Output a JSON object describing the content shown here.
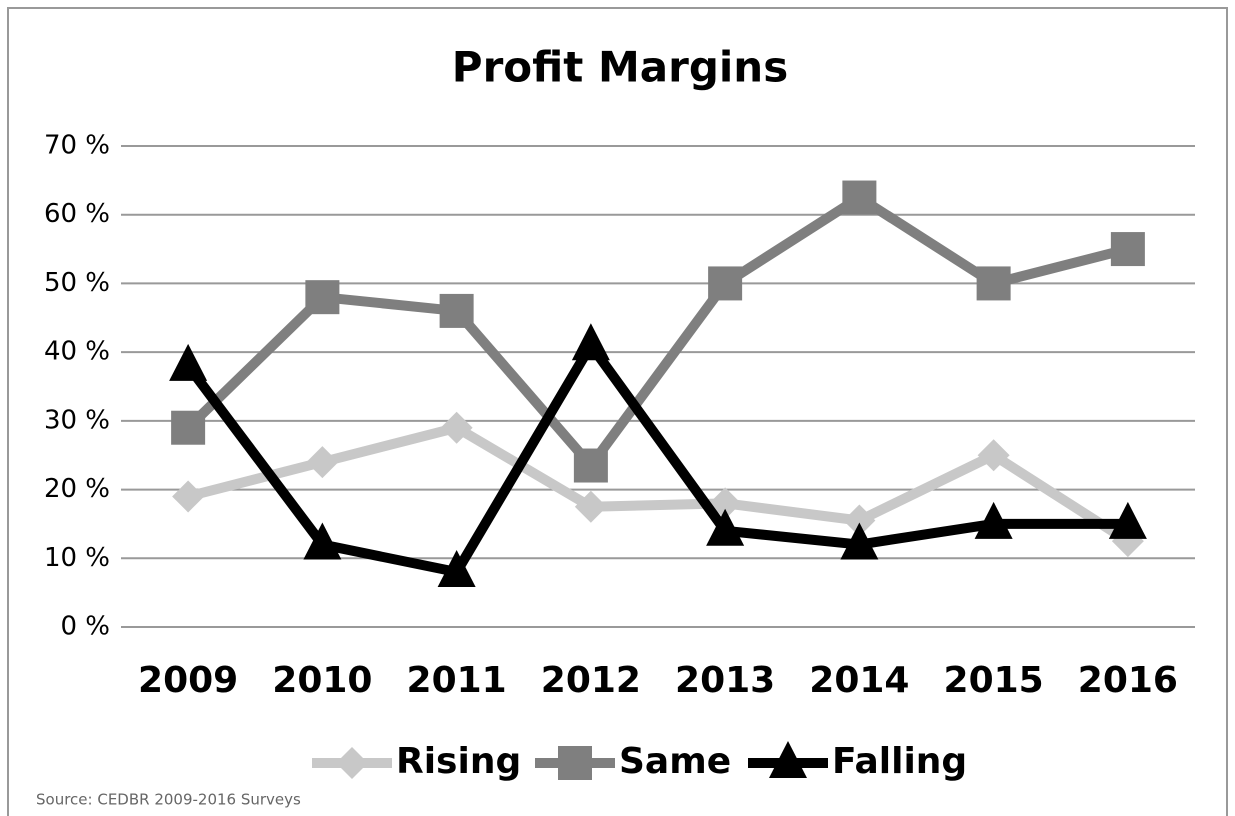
{
  "chart_data": {
    "type": "line",
    "title": "Profit Margins",
    "categories": [
      "2009",
      "2010",
      "2011",
      "2012",
      "2013",
      "2014",
      "2015",
      "2016"
    ],
    "series": [
      {
        "name": "Rising",
        "color": "#c8c8c8",
        "marker": "diamond",
        "values": [
          19,
          24,
          29,
          17.5,
          18,
          15.5,
          25,
          12.5
        ]
      },
      {
        "name": "Same",
        "color": "#7f7f7f",
        "marker": "square",
        "values": [
          29,
          48,
          46,
          23.5,
          50,
          62.5,
          50,
          55
        ]
      },
      {
        "name": "Falling",
        "color": "#000000",
        "marker": "triangle",
        "values": [
          38,
          12,
          8,
          41,
          14,
          12,
          15,
          15
        ]
      }
    ],
    "ylim": [
      0,
      70
    ],
    "yticks": [
      {
        "value": 0,
        "label": "0 %"
      },
      {
        "value": 10,
        "label": "10 %"
      },
      {
        "value": 20,
        "label": "20 %"
      },
      {
        "value": 30,
        "label": "30 %"
      },
      {
        "value": 40,
        "label": "40 %"
      },
      {
        "value": 50,
        "label": "50 %"
      },
      {
        "value": 60,
        "label": "60 %"
      },
      {
        "value": 70,
        "label": "70 %"
      }
    ],
    "grid": true,
    "legend": "bottom",
    "source": "Source: CEDBR 2009-2016 Surveys"
  }
}
